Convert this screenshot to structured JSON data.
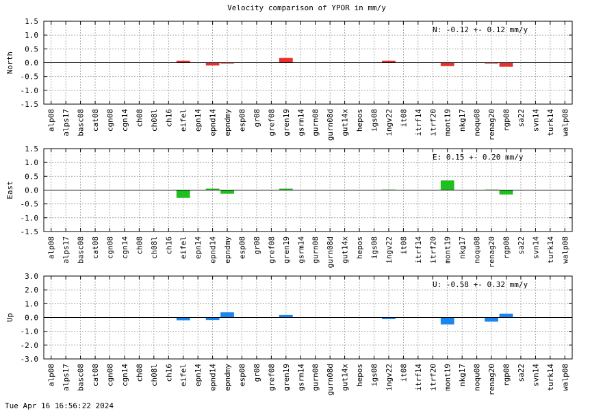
{
  "page": {
    "title": "Velocity comparison of YPOR in mm/y",
    "timestamp": "Tue Apr 16 16:56:22 2024"
  },
  "chart_data": [
    {
      "type": "bar",
      "ylabel": "North",
      "ylim": [
        -1.5,
        1.5
      ],
      "yticks": [
        "1.5",
        "1.0",
        "0.5",
        "0.0",
        "-0.5",
        "-1.0",
        "-1.5"
      ],
      "annotation": "N:  -0.12 +-  0.12 mm/y",
      "color": "#e8312f",
      "grid": true,
      "categories": [
        "alp08",
        "alps17",
        "basc08",
        "cat08",
        "cgn08",
        "cgn14",
        "ch08",
        "ch08l",
        "ch16",
        "eifel",
        "epn14",
        "epnd14",
        "epndmy",
        "esp08",
        "gr08",
        "gref08",
        "gren19",
        "gsrm14",
        "gurn08",
        "gurn08d",
        "gut14x",
        "hepos",
        "igs08",
        "ingv22",
        "it08",
        "itrf14",
        "itrf20",
        "mont19",
        "nkg17",
        "noqu08",
        "renag20",
        "rgp08",
        "sa22",
        "svn14",
        "turk14",
        "walp08"
      ],
      "values": [
        0,
        0,
        0,
        0,
        0,
        0,
        0,
        0,
        0,
        0.07,
        0,
        -0.1,
        -0.03,
        0,
        0,
        0,
        0.17,
        0,
        0,
        0,
        0,
        0,
        0,
        0.07,
        0,
        0,
        0,
        -0.12,
        0,
        0,
        -0.03,
        -0.15,
        0,
        0,
        0,
        0
      ]
    },
    {
      "type": "bar",
      "ylabel": "East",
      "ylim": [
        -1.5,
        1.5
      ],
      "yticks": [
        "1.5",
        "1.0",
        "0.5",
        "0.0",
        "-0.5",
        "-1.0",
        "-1.5"
      ],
      "annotation": "E:   0.15 +-  0.20 mm/y",
      "color": "#1fbf1f",
      "grid": true,
      "categories": [
        "alp08",
        "alps17",
        "basc08",
        "cat08",
        "cgn08",
        "cgn14",
        "ch08",
        "ch08l",
        "ch16",
        "eifel",
        "epn14",
        "epnd14",
        "epndmy",
        "esp08",
        "gr08",
        "gref08",
        "gren19",
        "gsrm14",
        "gurn08",
        "gurn08d",
        "gut14x",
        "hepos",
        "igs08",
        "ingv22",
        "it08",
        "itrf14",
        "itrf20",
        "mont19",
        "nkg17",
        "noqu08",
        "renag20",
        "rgp08",
        "sa22",
        "svn14",
        "turk14",
        "walp08"
      ],
      "values": [
        0,
        0,
        0,
        0,
        0,
        0,
        0,
        0,
        0,
        -0.28,
        0,
        0.05,
        -0.13,
        0,
        0,
        0,
        0.05,
        0,
        0,
        0,
        0,
        0,
        0,
        0.02,
        0,
        0,
        0,
        0.35,
        0,
        0,
        0.02,
        -0.16,
        0,
        0,
        0,
        0
      ]
    },
    {
      "type": "bar",
      "ylabel": "Up",
      "ylim": [
        -3.0,
        3.0
      ],
      "yticks": [
        "3.0",
        "2.0",
        "1.0",
        "0.0",
        "-1.0",
        "-2.0",
        "-3.0"
      ],
      "annotation": "U:  -0.58 +-  0.32 mm/y",
      "color": "#1a86f0",
      "grid": true,
      "categories": [
        "alp08",
        "alps17",
        "basc08",
        "cat08",
        "cgn08",
        "cgn14",
        "ch08",
        "ch08l",
        "ch16",
        "eifel",
        "epn14",
        "epnd14",
        "epndmy",
        "esp08",
        "gr08",
        "gref08",
        "gren19",
        "gsrm14",
        "gurn08",
        "gurn08d",
        "gut14x",
        "hepos",
        "igs08",
        "ingv22",
        "it08",
        "itrf14",
        "itrf20",
        "mont19",
        "nkg17",
        "noqu08",
        "renag20",
        "rgp08",
        "sa22",
        "svn14",
        "turk14",
        "walp08"
      ],
      "values": [
        0,
        0,
        0,
        0,
        0,
        0,
        0,
        0,
        0,
        -0.2,
        0,
        -0.18,
        0.38,
        0,
        0,
        0,
        0.18,
        0,
        0,
        0,
        0,
        0,
        0,
        -0.12,
        0,
        0,
        0,
        -0.5,
        0,
        0,
        -0.3,
        0.28,
        0,
        0,
        0,
        0
      ]
    }
  ]
}
